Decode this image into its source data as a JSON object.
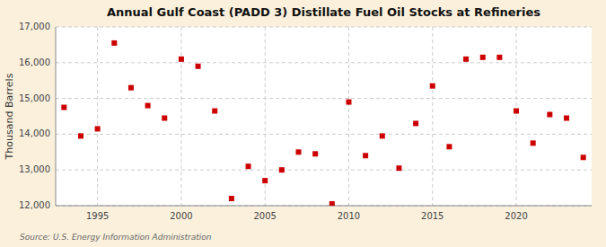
{
  "chart_data": {
    "type": "scatter",
    "title": "Annual Gulf Coast (PADD 3) Distillate Fuel Oil Stocks at Refineries",
    "y_label": "Thousand Barrels",
    "annotation": "Source: U.S. Energy Information Administration",
    "x": [
      1993,
      1994,
      1995,
      1996,
      1997,
      1998,
      1999,
      2000,
      2001,
      2002,
      2003,
      2004,
      2005,
      2006,
      2007,
      2008,
      2009,
      2010,
      2011,
      2012,
      2013,
      2014,
      2015,
      2016,
      2017,
      2018,
      2019,
      2020,
      2021,
      2022,
      2023,
      2024
    ],
    "values": [
      14750,
      13950,
      14150,
      16550,
      15300,
      14800,
      14450,
      16100,
      15900,
      14650,
      12200,
      13100,
      12700,
      13000,
      13500,
      13450,
      12050,
      14900,
      13400,
      13950,
      13050,
      14300,
      15350,
      13650,
      16100,
      16150,
      16150,
      14650,
      13750,
      14550,
      14450,
      13350
    ],
    "color": "#cc0000",
    "marker": "square",
    "xlim": [
      1992.5,
      2024.5
    ],
    "xticks": [
      1995,
      2000,
      2005,
      2010,
      2015,
      2020
    ],
    "ylim": [
      12000,
      17000
    ],
    "yticks": [
      {
        "value": 12000,
        "label": "12,000"
      },
      {
        "value": 13000,
        "label": "13,000"
      },
      {
        "value": 14000,
        "label": "14,000"
      },
      {
        "value": 15000,
        "label": "15,000"
      },
      {
        "value": 16000,
        "label": "16,000"
      },
      {
        "value": 17000,
        "label": "17,000"
      }
    ],
    "grid": true
  }
}
